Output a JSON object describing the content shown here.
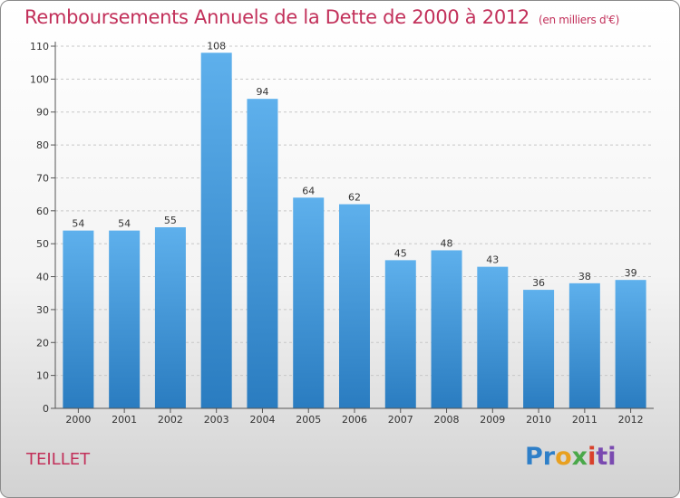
{
  "title": "Remboursements Annuels de la Dette de 2000 à 2012",
  "unit": "(en milliers d'€)",
  "town": "TEILLET",
  "logo": "Proxiti",
  "chart_data": {
    "type": "bar",
    "title": "Remboursements Annuels de la Dette de 2000 à 2012",
    "subtitle": "(en milliers d'€)",
    "xlabel": "",
    "ylabel": "",
    "categories": [
      "2000",
      "2001",
      "2002",
      "2003",
      "2004",
      "2005",
      "2006",
      "2007",
      "2008",
      "2009",
      "2010",
      "2011",
      "2012"
    ],
    "values": [
      54,
      54,
      55,
      108,
      94,
      64,
      62,
      45,
      48,
      43,
      36,
      38,
      39
    ],
    "ylim": [
      0,
      110
    ],
    "yticks": [
      0,
      10,
      20,
      30,
      40,
      50,
      60,
      70,
      80,
      90,
      100,
      110
    ],
    "grid": "horizontal-dashed",
    "legend": "none",
    "bar_color": "#3d96d8"
  }
}
